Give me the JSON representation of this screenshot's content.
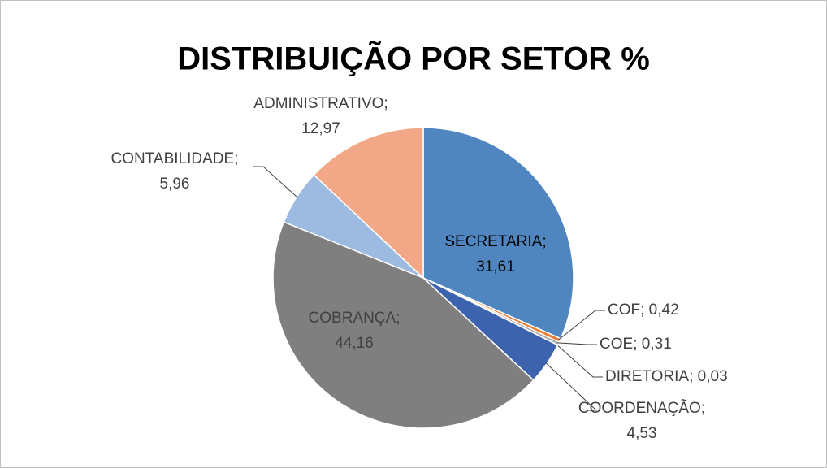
{
  "chart_data": {
    "type": "pie",
    "title": "DISTRIBUIÇÃO POR SETOR %",
    "categories": [
      "SECRETARIA",
      "COF",
      "COE",
      "DIRETORIA",
      "COORDENAÇÃO",
      "COBRANÇA",
      "CONTABILIDADE",
      "ADMINISTRATIVO"
    ],
    "values": [
      31.61,
      0.42,
      0.31,
      0.03,
      4.53,
      44.16,
      5.96,
      12.97
    ],
    "value_labels": [
      "31,61",
      "0,42",
      "0,31",
      "0,03",
      "4,53",
      "44,16",
      "5,96",
      "12,97"
    ],
    "separator": ";",
    "colors": [
      "#4f86c0",
      "#ed7d31",
      "#a5a5a5",
      "#ffc000",
      "#3d63ae",
      "#7f7f7f",
      "#9dbbe1",
      "#f2a886"
    ]
  }
}
